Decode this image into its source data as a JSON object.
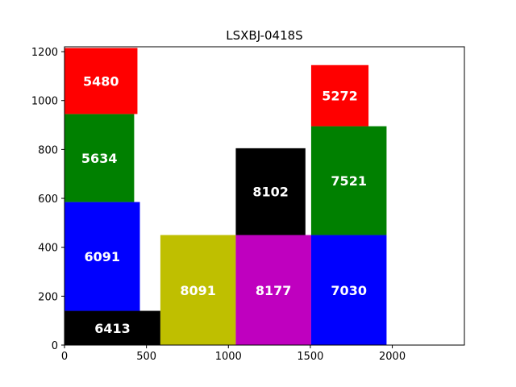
{
  "chart_data": {
    "type": "bar",
    "title": "LSXBJ-0418S",
    "xlabel": "",
    "ylabel": "",
    "xlim": [
      0,
      2440
    ],
    "ylim": [
      0,
      1220
    ],
    "xticks": [
      0,
      500,
      1000,
      1500,
      2000
    ],
    "yticks": [
      0,
      200,
      400,
      600,
      800,
      1000,
      1200
    ],
    "grid": false,
    "rectangles": [
      {
        "label": "6413",
        "x0": 0,
        "x1": 585,
        "y0": 0,
        "y1": 140,
        "color": "#000000"
      },
      {
        "label": "6091",
        "x0": 0,
        "x1": 460,
        "y0": 140,
        "y1": 585,
        "color": "#0000ff"
      },
      {
        "label": "5634",
        "x0": 0,
        "x1": 425,
        "y0": 585,
        "y1": 945,
        "color": "#008000"
      },
      {
        "label": "5480",
        "x0": 0,
        "x1": 445,
        "y0": 945,
        "y1": 1215,
        "color": "#ff0000"
      },
      {
        "label": "8091",
        "x0": 585,
        "x1": 1045,
        "y0": 0,
        "y1": 450,
        "color": "#bfbf00"
      },
      {
        "label": "8177",
        "x0": 1045,
        "x1": 1505,
        "y0": 0,
        "y1": 450,
        "color": "#bf00bf"
      },
      {
        "label": "8102",
        "x0": 1045,
        "x1": 1470,
        "y0": 450,
        "y1": 805,
        "color": "#000000"
      },
      {
        "label": "7030",
        "x0": 1505,
        "x1": 1965,
        "y0": 0,
        "y1": 450,
        "color": "#0000ff"
      },
      {
        "label": "7521",
        "x0": 1505,
        "x1": 1965,
        "y0": 450,
        "y1": 895,
        "color": "#008000"
      },
      {
        "label": "5272",
        "x0": 1505,
        "x1": 1855,
        "y0": 895,
        "y1": 1145,
        "color": "#ff0000"
      }
    ]
  }
}
